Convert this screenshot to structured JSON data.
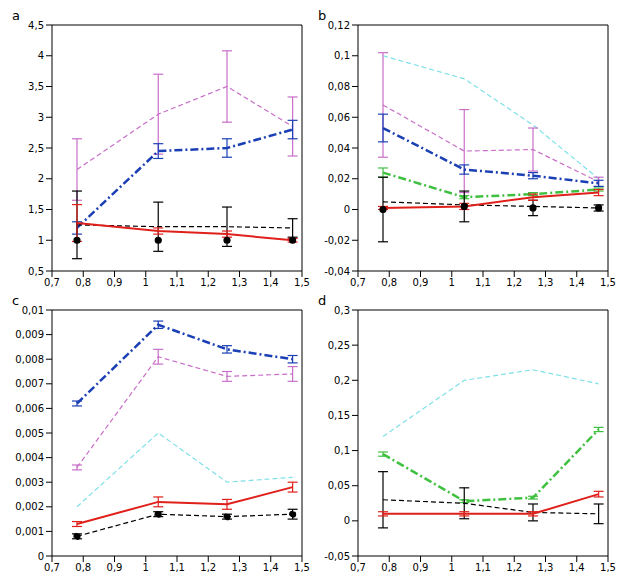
{
  "chart_data": [
    {
      "type": "line",
      "title": "a",
      "x": [
        0.78,
        1.04,
        1.26,
        1.47
      ],
      "xlim": [
        0.7,
        1.5
      ],
      "xticks": [
        {
          "value": 0.7,
          "label": "0,7"
        },
        {
          "value": 0.8,
          "label": "0,8"
        },
        {
          "value": 0.9,
          "label": "0,9"
        },
        1,
        {
          "value": 1.1,
          "label": "1,1"
        },
        {
          "value": 1.2,
          "label": "1,2"
        },
        {
          "value": 1.3,
          "label": "1,3"
        },
        {
          "value": 1.4,
          "label": "1,4"
        },
        {
          "value": 1.5,
          "label": "1,5"
        }
      ],
      "ylim": [
        0.5,
        4.5
      ],
      "yticks": [
        {
          "value": 0.5,
          "label": "0,5"
        },
        1,
        {
          "value": 1.5,
          "label": "1,5"
        },
        2,
        {
          "value": 2.5,
          "label": "2,5"
        },
        3,
        {
          "value": 3.5,
          "label": "3,5"
        },
        4,
        {
          "value": 4.5,
          "label": "4,5"
        }
      ],
      "series": [
        {
          "color": "#c86ec8",
          "line_style": "dashed",
          "marker": "none",
          "values": [
            2.15,
            3.05,
            3.5,
            2.85
          ],
          "errors": [
            0.5,
            0.65,
            0.58,
            0.48
          ]
        },
        {
          "color": "#1a3fb5",
          "line_style": "dashdot",
          "marker": "none",
          "values": [
            1.2,
            2.45,
            2.5,
            2.8
          ],
          "errors": [
            0.1,
            0.12,
            0.15,
            0.15
          ]
        },
        {
          "color": "#000000",
          "line_style": "dashed",
          "marker": "none",
          "values": [
            1.25,
            1.22,
            1.22,
            1.2
          ],
          "errors": [
            0.55,
            0.4,
            0.32,
            0.15
          ]
        },
        {
          "color": "#000000",
          "line_style": "none",
          "marker": "circle",
          "values": [
            1.0,
            1.0,
            1.0,
            1.0
          ]
        },
        {
          "color": "#e0201a",
          "line_style": "solid",
          "marker": "none",
          "values": [
            1.28,
            1.15,
            1.1,
            1.0
          ],
          "errors": [
            0.3,
            0.05,
            0.05,
            0.03
          ]
        }
      ]
    },
    {
      "type": "line",
      "title": "b",
      "x": [
        0.78,
        1.04,
        1.26,
        1.47
      ],
      "xlim": [
        0.7,
        1.5
      ],
      "xticks": [
        {
          "value": 0.7,
          "label": "0,7"
        },
        {
          "value": 0.8,
          "label": "0,8"
        },
        {
          "value": 0.9,
          "label": "0,9"
        },
        1,
        {
          "value": 1.1,
          "label": "1,1"
        },
        {
          "value": 1.2,
          "label": "1,2"
        },
        {
          "value": 1.3,
          "label": "1,3"
        },
        {
          "value": 1.4,
          "label": "1,4"
        },
        {
          "value": 1.5,
          "label": "1,5"
        }
      ],
      "ylim": [
        -0.04,
        0.12
      ],
      "yticks": [
        {
          "value": -0.04,
          "label": "-0,04"
        },
        {
          "value": -0.02,
          "label": "-0,02"
        },
        0,
        {
          "value": 0.02,
          "label": "0,02"
        },
        {
          "value": 0.04,
          "label": "0,04"
        },
        {
          "value": 0.06,
          "label": "0,06"
        },
        {
          "value": 0.08,
          "label": "0,08"
        },
        {
          "value": 0.1,
          "label": "0,1"
        },
        {
          "value": 0.12,
          "label": "0,12"
        }
      ],
      "series": [
        {
          "color": "#7fe0e8",
          "line_style": "dashed",
          "marker": "none",
          "values": [
            0.1,
            0.085,
            0.055,
            0.02
          ]
        },
        {
          "color": "#c86ec8",
          "line_style": "dashed",
          "marker": "none",
          "values": [
            0.068,
            0.038,
            0.039,
            0.018
          ],
          "errors": [
            0.034,
            0.027,
            0.014,
            0.003
          ]
        },
        {
          "color": "#1a3fb5",
          "line_style": "dashdot",
          "marker": "none",
          "values": [
            0.053,
            0.026,
            0.022,
            0.017
          ],
          "errors": [
            0.009,
            0.003,
            0.002,
            0.002
          ]
        },
        {
          "color": "#40c040",
          "line_style": "dashdot",
          "marker": "none",
          "values": [
            0.024,
            0.008,
            0.01,
            0.013
          ],
          "errors": [
            0.003,
            0.001,
            0.001,
            0.001
          ]
        },
        {
          "color": "#000000",
          "line_style": "dashed",
          "marker": "none",
          "values": [
            0.005,
            0.003,
            0.002,
            0.001
          ]
        },
        {
          "color": "#000000",
          "line_style": "none",
          "marker": "circle",
          "values": [
            0.0,
            0.002,
            0.001,
            0.001
          ],
          "errors": [
            0.021,
            0.01,
            0.005,
            0.002
          ]
        },
        {
          "color": "#e0201a",
          "line_style": "solid",
          "marker": "none",
          "values": [
            0.001,
            0.002,
            0.008,
            0.011
          ],
          "errors": [
            0.001,
            0.002,
            0.002,
            0.002
          ]
        }
      ]
    },
    {
      "type": "line",
      "title": "c",
      "x": [
        0.78,
        1.04,
        1.26,
        1.47
      ],
      "xlim": [
        0.7,
        1.5
      ],
      "xticks": [
        {
          "value": 0.7,
          "label": "0,7"
        },
        {
          "value": 0.8,
          "label": "0,8"
        },
        {
          "value": 0.9,
          "label": "0,9"
        },
        1,
        {
          "value": 1.1,
          "label": "1,1"
        },
        {
          "value": 1.2,
          "label": "1,2"
        },
        {
          "value": 1.3,
          "label": "1,3"
        },
        {
          "value": 1.4,
          "label": "1,4"
        },
        {
          "value": 1.5,
          "label": "1,5"
        }
      ],
      "ylim": [
        0,
        0.01
      ],
      "yticks": [
        0,
        {
          "value": 0.001,
          "label": "0,001"
        },
        {
          "value": 0.002,
          "label": "0,002"
        },
        {
          "value": 0.003,
          "label": "0,003"
        },
        {
          "value": 0.004,
          "label": "0,004"
        },
        {
          "value": 0.005,
          "label": "0,005"
        },
        {
          "value": 0.006,
          "label": "0,006"
        },
        {
          "value": 0.007,
          "label": "0,007"
        },
        {
          "value": 0.008,
          "label": "0,008"
        },
        {
          "value": 0.009,
          "label": "0,009"
        },
        {
          "value": 0.01,
          "label": "0,01"
        }
      ],
      "series": [
        {
          "color": "#1a3fb5",
          "line_style": "dashdot",
          "marker": "none",
          "values": [
            0.0062,
            0.0094,
            0.0084,
            0.008
          ],
          "errors": [
            0.0001,
            0.00015,
            0.00015,
            0.00015
          ]
        },
        {
          "color": "#c86ec8",
          "line_style": "dashed",
          "marker": "none",
          "values": [
            0.0036,
            0.0081,
            0.0073,
            0.0074
          ],
          "errors": [
            0.0001,
            0.0003,
            0.0002,
            0.0003
          ]
        },
        {
          "color": "#7fe0e8",
          "line_style": "dashed",
          "marker": "none",
          "values": [
            0.002,
            0.005,
            0.003,
            0.0032
          ]
        },
        {
          "color": "#e0201a",
          "line_style": "solid",
          "marker": "none",
          "values": [
            0.0013,
            0.0022,
            0.0021,
            0.0028
          ],
          "errors": [
            0.0001,
            0.0002,
            0.0002,
            0.0002
          ]
        },
        {
          "color": "#000000",
          "line_style": "dashed",
          "marker": "circle",
          "values": [
            0.0008,
            0.0017,
            0.0016,
            0.0017
          ],
          "errors": [
            0.0001,
            0.0001,
            0.0001,
            0.0002
          ]
        }
      ]
    },
    {
      "type": "line",
      "title": "d",
      "x": [
        0.78,
        1.04,
        1.26,
        1.47
      ],
      "xlim": [
        0.7,
        1.5
      ],
      "xticks": [
        {
          "value": 0.7,
          "label": "0,7"
        },
        {
          "value": 0.8,
          "label": "0,8"
        },
        {
          "value": 0.9,
          "label": "0,9"
        },
        1,
        {
          "value": 1.1,
          "label": "1,1"
        },
        {
          "value": 1.2,
          "label": "1,2"
        },
        {
          "value": 1.3,
          "label": "1,3"
        },
        {
          "value": 1.4,
          "label": "1,4"
        },
        {
          "value": 1.5,
          "label": "1,5"
        }
      ],
      "ylim": [
        -0.05,
        0.3
      ],
      "yticks": [
        {
          "value": -0.05,
          "label": "-0,05"
        },
        0,
        {
          "value": 0.05,
          "label": "0,05"
        },
        {
          "value": 0.1,
          "label": "0,1"
        },
        {
          "value": 0.15,
          "label": "0,15"
        },
        {
          "value": 0.2,
          "label": "0,2"
        },
        {
          "value": 0.25,
          "label": "0,25"
        },
        {
          "value": 0.3,
          "label": "0,3"
        }
      ],
      "series": [
        {
          "color": "#7fe0e8",
          "line_style": "dashed",
          "marker": "none",
          "values": [
            0.12,
            0.2,
            0.215,
            0.195
          ]
        },
        {
          "color": "#40c040",
          "line_style": "dashdot",
          "marker": "none",
          "values": [
            0.095,
            0.028,
            0.033,
            0.13
          ],
          "errors": [
            0.003,
            0.002,
            0.002,
            0.003
          ]
        },
        {
          "color": "#000000",
          "line_style": "dashed",
          "marker": "none",
          "values": [
            0.03,
            0.025,
            0.012,
            0.01
          ],
          "errors": [
            0.04,
            0.022,
            0.012,
            0.014
          ]
        },
        {
          "color": "#e0201a",
          "line_style": "solid",
          "marker": "none",
          "values": [
            0.01,
            0.01,
            0.01,
            0.038
          ],
          "errors": [
            0.003,
            0.003,
            0.003,
            0.004
          ]
        }
      ]
    }
  ]
}
